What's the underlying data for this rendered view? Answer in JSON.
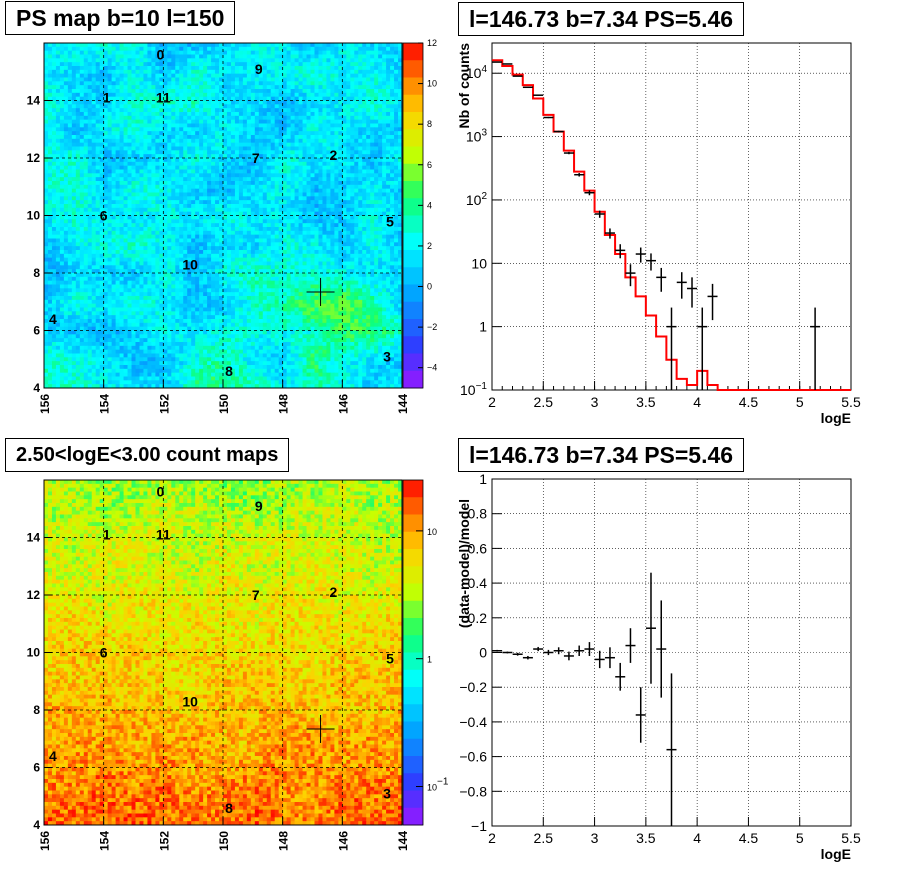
{
  "panels": {
    "tl_title": "PS map b=10 l=150",
    "tr_title": "l=146.73 b=7.34 PS=5.46",
    "bl_title": "2.50<logE<3.00 count maps",
    "br_title": "l=146.73 b=7.34 PS=5.46"
  },
  "chart_data": [
    {
      "type": "heatmap",
      "title": "PS map b=10 l=150",
      "x_ticks": [
        "156",
        "154",
        "152",
        "150",
        "148",
        "146",
        "144"
      ],
      "y_ticks": [
        "4",
        "6",
        "8",
        "10",
        "12",
        "14"
      ],
      "xlim": [
        156,
        144
      ],
      "ylim": [
        4,
        16
      ],
      "colorbar_ticks": [
        "12",
        "10",
        "8",
        "6",
        "4",
        "2",
        "0",
        "−2",
        "−4"
      ],
      "colorbar_range": [
        -5,
        12
      ],
      "source_labels": [
        {
          "label": "0",
          "l": 152.1,
          "b": 15.6
        },
        {
          "label": "9",
          "l": 148.8,
          "b": 15.1
        },
        {
          "label": "1",
          "l": 153.9,
          "b": 14.1
        },
        {
          "label": "11",
          "l": 152.0,
          "b": 14.1
        },
        {
          "label": "7",
          "l": 148.9,
          "b": 12.0
        },
        {
          "label": "2",
          "l": 146.3,
          "b": 12.1
        },
        {
          "label": "6",
          "l": 154.0,
          "b": 10.0
        },
        {
          "label": "5",
          "l": 144.4,
          "b": 9.8
        },
        {
          "label": "10",
          "l": 151.1,
          "b": 8.3
        },
        {
          "label": "4",
          "l": 155.7,
          "b": 6.4
        },
        {
          "label": "3",
          "l": 144.5,
          "b": 5.1
        },
        {
          "label": "8",
          "l": 149.8,
          "b": 4.6
        }
      ],
      "marker": {
        "l": 146.73,
        "b": 7.34
      },
      "grid": true
    },
    {
      "type": "line",
      "title": "l=146.73 b=7.34 PS=5.46",
      "xlabel": "logE",
      "ylabel": "Nb of counts",
      "xlim": [
        2,
        5.5
      ],
      "ylim": [
        0.1,
        30000
      ],
      "yscale": "log",
      "x_ticks": [
        "2",
        "2.5",
        "3",
        "3.5",
        "4",
        "4.5",
        "5",
        "5.5"
      ],
      "y_ticks": [
        "10^{-1}",
        "1",
        "10",
        "10^{2}",
        "10^{3}",
        "10^{4}"
      ],
      "grid": true,
      "series": [
        {
          "color": "#ff0000",
          "bin_edges": [
            2.0,
            2.1,
            2.2,
            2.3,
            2.4,
            2.5,
            2.6,
            2.7,
            2.8,
            2.9,
            3.0,
            3.1,
            3.2,
            3.3,
            3.4,
            3.5,
            3.6,
            3.7,
            3.8,
            3.9,
            4.0,
            4.1,
            4.2,
            4.3,
            4.4,
            5.5
          ],
          "values": [
            16000,
            13000,
            9500,
            6500,
            4000,
            2200,
            1200,
            600,
            280,
            140,
            65,
            28,
            14,
            6,
            3,
            1.5,
            0.7,
            0.3,
            0.15,
            0.12,
            0.2,
            0.12,
            0.1,
            0.1,
            0.1
          ]
        },
        {
          "color": "#000000",
          "x": [
            2.05,
            2.15,
            2.25,
            2.35,
            2.45,
            2.55,
            2.65,
            2.75,
            2.85,
            2.95,
            3.05,
            3.15,
            3.25,
            3.35,
            3.45,
            3.55,
            3.65,
            3.75,
            3.85,
            3.95,
            4.05,
            4.15,
            5.15
          ],
          "y": [
            15000,
            14000,
            9000,
            6000,
            4500,
            2000,
            1200,
            550,
            250,
            130,
            60,
            30,
            16,
            7,
            14,
            11,
            6,
            1,
            5,
            4,
            1,
            3,
            1
          ]
        }
      ]
    },
    {
      "type": "heatmap",
      "title": "2.50<logE<3.00 count maps",
      "x_ticks": [
        "156",
        "154",
        "152",
        "150",
        "148",
        "146",
        "144"
      ],
      "y_ticks": [
        "4",
        "6",
        "8",
        "10",
        "12",
        "14"
      ],
      "xlim": [
        156,
        144
      ],
      "ylim": [
        4,
        16
      ],
      "colorbar_ticks": [
        "10",
        "1",
        "10^{-1}"
      ],
      "colorbar_scale": "log",
      "source_labels": [
        {
          "label": "0",
          "l": 152.1,
          "b": 15.6
        },
        {
          "label": "9",
          "l": 148.8,
          "b": 15.1
        },
        {
          "label": "1",
          "l": 153.9,
          "b": 14.1
        },
        {
          "label": "11",
          "l": 152.0,
          "b": 14.1
        },
        {
          "label": "7",
          "l": 148.9,
          "b": 12.0
        },
        {
          "label": "2",
          "l": 146.3,
          "b": 12.1
        },
        {
          "label": "6",
          "l": 154.0,
          "b": 10.0
        },
        {
          "label": "5",
          "l": 144.4,
          "b": 9.8
        },
        {
          "label": "10",
          "l": 151.1,
          "b": 8.3
        },
        {
          "label": "4",
          "l": 155.7,
          "b": 6.4
        },
        {
          "label": "3",
          "l": 144.5,
          "b": 5.1
        },
        {
          "label": "8",
          "l": 149.8,
          "b": 4.6
        }
      ],
      "marker": {
        "l": 146.73,
        "b": 7.34
      },
      "grid": true
    },
    {
      "type": "scatter",
      "title": "l=146.73 b=7.34 PS=5.46",
      "xlabel": "logE",
      "ylabel": "(data-model)/model",
      "xlim": [
        2,
        5.5
      ],
      "ylim": [
        -1,
        1
      ],
      "x_ticks": [
        "2",
        "2.5",
        "3",
        "3.5",
        "4",
        "4.5",
        "5",
        "5.5"
      ],
      "y_ticks": [
        "−1",
        "−0.8",
        "−0.6",
        "−0.4",
        "−0.2",
        "0",
        "0.2",
        "0.4",
        "0.6",
        "0.8",
        "1"
      ],
      "grid": true,
      "x": [
        2.05,
        2.15,
        2.25,
        2.35,
        2.45,
        2.55,
        2.65,
        2.75,
        2.85,
        2.95,
        3.05,
        3.15,
        3.25,
        3.35,
        3.45,
        3.55,
        3.65,
        3.75
      ],
      "y": [
        0.01,
        0.0,
        -0.01,
        -0.03,
        0.02,
        0.0,
        0.01,
        -0.02,
        0.01,
        0.02,
        -0.04,
        -0.03,
        -0.14,
        0.04,
        -0.36,
        0.14,
        0.02,
        -0.56
      ],
      "err": [
        0.005,
        0.005,
        0.008,
        0.01,
        0.012,
        0.015,
        0.02,
        0.025,
        0.03,
        0.04,
        0.05,
        0.06,
        0.08,
        0.1,
        0.16,
        0.32,
        0.28,
        0.44
      ]
    }
  ]
}
